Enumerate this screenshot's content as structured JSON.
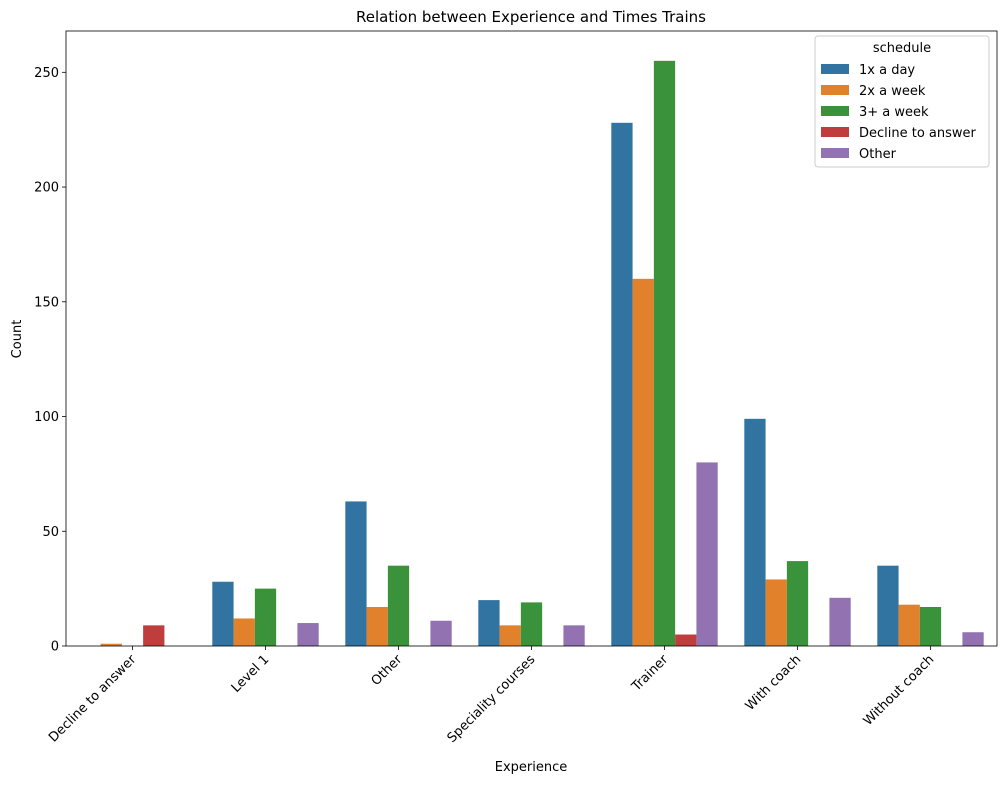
{
  "chart_data": {
    "type": "bar",
    "title": "Relation between Experience and Times Trains",
    "xlabel": "Experience",
    "ylabel": "Count",
    "ylim": [
      0,
      268
    ],
    "yticks": [
      0,
      50,
      100,
      150,
      200,
      250
    ],
    "categories": [
      "Decline to answer",
      "Level 1",
      "Other",
      "Speciality courses",
      "Trainer",
      "With coach",
      "Without coach"
    ],
    "legend": {
      "title": "schedule",
      "position": "top-right"
    },
    "grid": false,
    "series": [
      {
        "name": "1x a day",
        "color": "#3274a1",
        "values": [
          0,
          28,
          63,
          20,
          228,
          99,
          35
        ]
      },
      {
        "name": "2x a week",
        "color": "#e1812c",
        "values": [
          1,
          12,
          17,
          9,
          160,
          29,
          18
        ]
      },
      {
        "name": "3+ a week",
        "color": "#3a923a",
        "values": [
          0,
          25,
          35,
          19,
          255,
          37,
          17
        ]
      },
      {
        "name": "Decline to answer",
        "color": "#c03d3e",
        "values": [
          9,
          0,
          0,
          0,
          5,
          0,
          0
        ]
      },
      {
        "name": "Other",
        "color": "#9372b2",
        "values": [
          0,
          10,
          11,
          9,
          80,
          21,
          6
        ]
      }
    ]
  }
}
